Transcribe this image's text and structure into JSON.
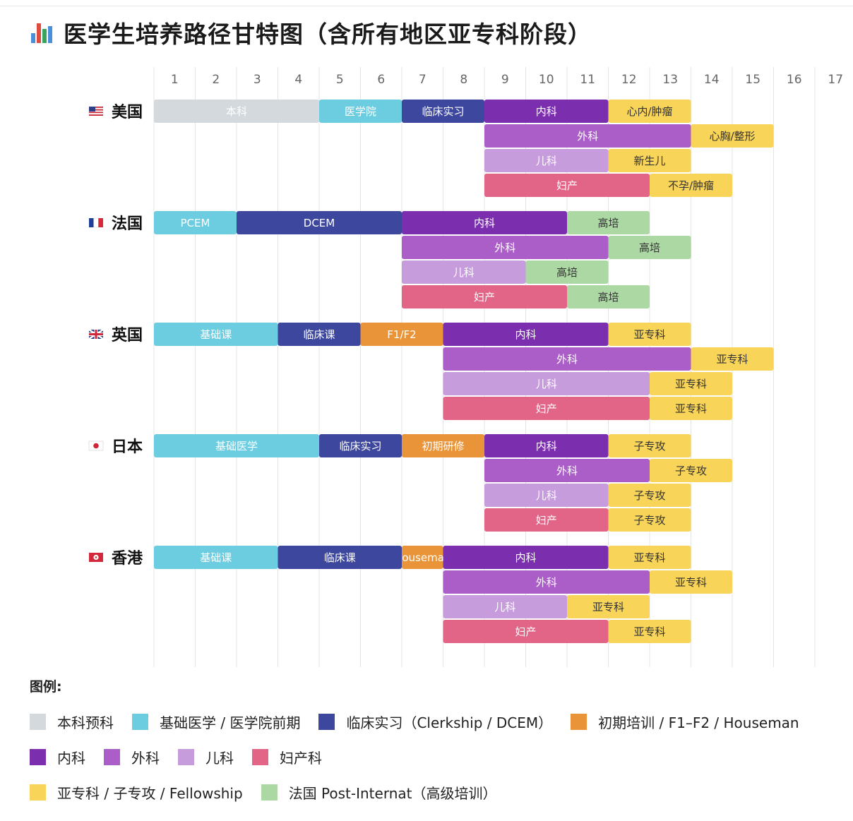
{
  "title": "医学生培养路径甘特图（含所有地区亚专科阶段）",
  "title_icon": "bar-chart-icon",
  "legend": {
    "title": "图例:",
    "rows": [
      [
        {
          "key": "pre",
          "label": "本科预科",
          "color": "#d3d9dc"
        },
        {
          "key": "basic",
          "label": "基础医学 / 医学院前期",
          "color": "#6dcde0"
        },
        {
          "key": "clerk",
          "label": "临床实习（Clerkship / DCEM）",
          "color": "#3d479e"
        },
        {
          "key": "intern",
          "label": "初期培训 / F1–F2 / Houseman",
          "color": "#ea943a"
        }
      ],
      [
        {
          "key": "med",
          "label": "内科",
          "color": "#7b2fae"
        },
        {
          "key": "surg",
          "label": "外科",
          "color": "#ab5ec8"
        },
        {
          "key": "ped",
          "label": "儿科",
          "color": "#c69cdd"
        },
        {
          "key": "obgyn",
          "label": "妇产科",
          "color": "#e26487"
        }
      ],
      [
        {
          "key": "sub",
          "label": "亚专科 / 子专攻 / Fellowship",
          "color": "#f8d459"
        },
        {
          "key": "post",
          "label": "法国 Post-Internat（高级培训）",
          "color": "#acd8a4"
        }
      ]
    ]
  },
  "chart_data": {
    "type": "gantt",
    "x_ticks": [
      1,
      2,
      3,
      4,
      5,
      6,
      7,
      8,
      9,
      10,
      11,
      12,
      13,
      14,
      15,
      16,
      17
    ],
    "x_range": [
      1,
      17
    ],
    "grid": true,
    "countries": [
      {
        "name": "美国",
        "flag": "us",
        "rows": [
          [
            {
              "start": 1,
              "end": 5,
              "label": "本科",
              "cat": "pre"
            },
            {
              "start": 5,
              "end": 7,
              "label": "医学院",
              "cat": "basic"
            },
            {
              "start": 7,
              "end": 9,
              "label": "临床实习",
              "cat": "clerk"
            },
            {
              "start": 9,
              "end": 12,
              "label": "内科",
              "cat": "med"
            },
            {
              "start": 12,
              "end": 14,
              "label": "心内/肿瘤",
              "cat": "sub"
            }
          ],
          [
            {
              "start": 9,
              "end": 14,
              "label": "外科",
              "cat": "surg"
            },
            {
              "start": 14,
              "end": 16,
              "label": "心胸/整形",
              "cat": "sub"
            }
          ],
          [
            {
              "start": 9,
              "end": 12,
              "label": "儿科",
              "cat": "ped"
            },
            {
              "start": 12,
              "end": 14,
              "label": "新生儿",
              "cat": "sub"
            }
          ],
          [
            {
              "start": 9,
              "end": 13,
              "label": "妇产",
              "cat": "obgyn"
            },
            {
              "start": 13,
              "end": 15,
              "label": "不孕/肿瘤",
              "cat": "sub"
            }
          ]
        ]
      },
      {
        "name": "法国",
        "flag": "fr",
        "rows": [
          [
            {
              "start": 1,
              "end": 3,
              "label": "PCEM",
              "cat": "basic"
            },
            {
              "start": 3,
              "end": 7,
              "label": "DCEM",
              "cat": "clerk"
            },
            {
              "start": 7,
              "end": 11,
              "label": "内科",
              "cat": "med"
            },
            {
              "start": 11,
              "end": 13,
              "label": "高培",
              "cat": "post"
            }
          ],
          [
            {
              "start": 7,
              "end": 12,
              "label": "外科",
              "cat": "surg"
            },
            {
              "start": 12,
              "end": 14,
              "label": "高培",
              "cat": "post"
            }
          ],
          [
            {
              "start": 7,
              "end": 10,
              "label": "儿科",
              "cat": "ped"
            },
            {
              "start": 10,
              "end": 12,
              "label": "高培",
              "cat": "post"
            }
          ],
          [
            {
              "start": 7,
              "end": 11,
              "label": "妇产",
              "cat": "obgyn"
            },
            {
              "start": 11,
              "end": 13,
              "label": "高培",
              "cat": "post"
            }
          ]
        ]
      },
      {
        "name": "英国",
        "flag": "uk",
        "rows": [
          [
            {
              "start": 1,
              "end": 4,
              "label": "基础课",
              "cat": "basic"
            },
            {
              "start": 4,
              "end": 6,
              "label": "临床课",
              "cat": "clerk"
            },
            {
              "start": 6,
              "end": 8,
              "label": "F1/F2",
              "cat": "intern"
            },
            {
              "start": 8,
              "end": 12,
              "label": "内科",
              "cat": "med"
            },
            {
              "start": 12,
              "end": 14,
              "label": "亚专科",
              "cat": "sub"
            }
          ],
          [
            {
              "start": 8,
              "end": 14,
              "label": "外科",
              "cat": "surg"
            },
            {
              "start": 14,
              "end": 16,
              "label": "亚专科",
              "cat": "sub"
            }
          ],
          [
            {
              "start": 8,
              "end": 13,
              "label": "儿科",
              "cat": "ped"
            },
            {
              "start": 13,
              "end": 15,
              "label": "亚专科",
              "cat": "sub"
            }
          ],
          [
            {
              "start": 8,
              "end": 13,
              "label": "妇产",
              "cat": "obgyn"
            },
            {
              "start": 13,
              "end": 15,
              "label": "亚专科",
              "cat": "sub"
            }
          ]
        ]
      },
      {
        "name": "日本",
        "flag": "jp",
        "rows": [
          [
            {
              "start": 1,
              "end": 5,
              "label": "基础医学",
              "cat": "basic"
            },
            {
              "start": 5,
              "end": 7,
              "label": "临床实习",
              "cat": "clerk"
            },
            {
              "start": 7,
              "end": 9,
              "label": "初期研修",
              "cat": "intern"
            },
            {
              "start": 9,
              "end": 12,
              "label": "内科",
              "cat": "med"
            },
            {
              "start": 12,
              "end": 14,
              "label": "子专攻",
              "cat": "sub"
            }
          ],
          [
            {
              "start": 9,
              "end": 13,
              "label": "外科",
              "cat": "surg"
            },
            {
              "start": 13,
              "end": 15,
              "label": "子专攻",
              "cat": "sub"
            }
          ],
          [
            {
              "start": 9,
              "end": 12,
              "label": "儿科",
              "cat": "ped"
            },
            {
              "start": 12,
              "end": 14,
              "label": "子专攻",
              "cat": "sub"
            }
          ],
          [
            {
              "start": 9,
              "end": 12,
              "label": "妇产",
              "cat": "obgyn"
            },
            {
              "start": 12,
              "end": 14,
              "label": "子专攻",
              "cat": "sub"
            }
          ]
        ]
      },
      {
        "name": "香港",
        "flag": "hk",
        "rows": [
          [
            {
              "start": 1,
              "end": 4,
              "label": "基础课",
              "cat": "basic"
            },
            {
              "start": 4,
              "end": 7,
              "label": "临床课",
              "cat": "clerk"
            },
            {
              "start": 7,
              "end": 8,
              "label": "Houseman",
              "cat": "intern"
            },
            {
              "start": 8,
              "end": 12,
              "label": "内科",
              "cat": "med"
            },
            {
              "start": 12,
              "end": 14,
              "label": "亚专科",
              "cat": "sub"
            }
          ],
          [
            {
              "start": 8,
              "end": 13,
              "label": "外科",
              "cat": "surg"
            },
            {
              "start": 13,
              "end": 15,
              "label": "亚专科",
              "cat": "sub"
            }
          ],
          [
            {
              "start": 8,
              "end": 11,
              "label": "儿科",
              "cat": "ped"
            },
            {
              "start": 11,
              "end": 13,
              "label": "亚专科",
              "cat": "sub"
            }
          ],
          [
            {
              "start": 8,
              "end": 12,
              "label": "妇产",
              "cat": "obgyn"
            },
            {
              "start": 12,
              "end": 14,
              "label": "亚专科",
              "cat": "sub"
            }
          ]
        ]
      }
    ]
  }
}
